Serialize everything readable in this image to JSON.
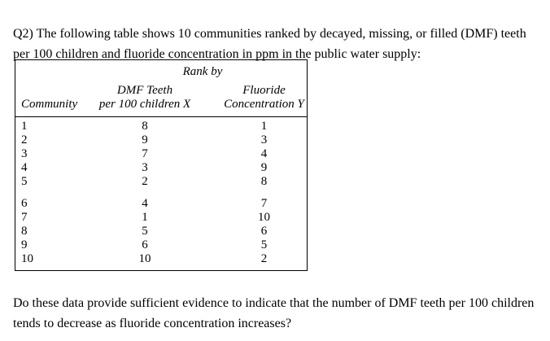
{
  "document": {
    "intro": "Q2) The following table shows 10 communities ranked by decayed, missing, or filled (DMF) teeth per 100 children and fluoride concentration in ppm in the public water supply:",
    "question": "Do these data provide sufficient evidence to indicate that the number of DMF teeth per 100 children tends to decrease as fluoride concentration increases?"
  },
  "table": {
    "spanner_label": "Rank by",
    "headers": {
      "community": "Community",
      "dmf_line1": "DMF Teeth",
      "dmf_line2": "per 100 children X",
      "fluoride_line1": "Fluoride",
      "fluoride_line2": "Concentration Y"
    },
    "rows": [
      {
        "community": "1",
        "dmf_rank": "8",
        "fluoride_rank": "1"
      },
      {
        "community": "2",
        "dmf_rank": "9",
        "fluoride_rank": "3"
      },
      {
        "community": "3",
        "dmf_rank": "7",
        "fluoride_rank": "4"
      },
      {
        "community": "4",
        "dmf_rank": "3",
        "fluoride_rank": "9"
      },
      {
        "community": "5",
        "dmf_rank": "2",
        "fluoride_rank": "8"
      },
      {
        "community": "6",
        "dmf_rank": "4",
        "fluoride_rank": "7"
      },
      {
        "community": "7",
        "dmf_rank": "1",
        "fluoride_rank": "10"
      },
      {
        "community": "8",
        "dmf_rank": "5",
        "fluoride_rank": "6"
      },
      {
        "community": "9",
        "dmf_rank": "6",
        "fluoride_rank": "5"
      },
      {
        "community": "10",
        "dmf_rank": "10",
        "fluoride_rank": "2"
      }
    ]
  }
}
